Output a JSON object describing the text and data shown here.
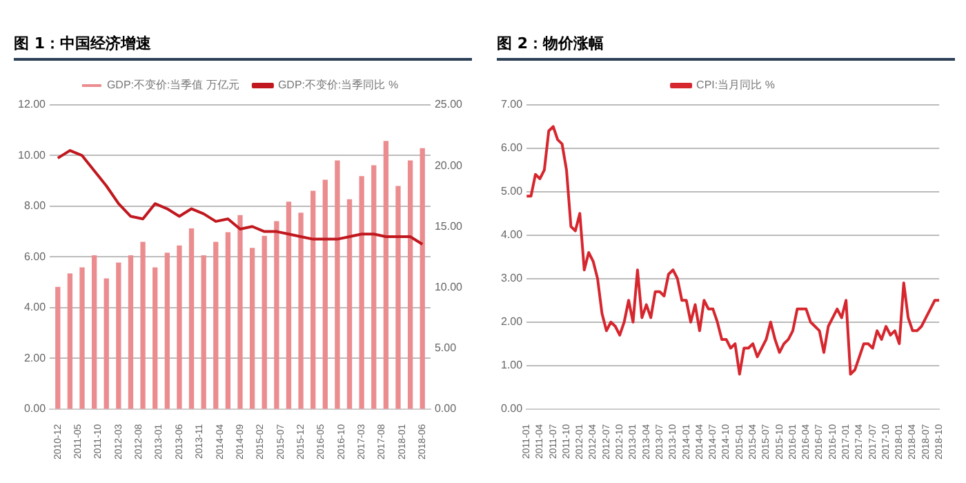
{
  "chart_data": [
    {
      "type": "bar",
      "title": "图 1：中国经济增速",
      "legend": "top",
      "grid": "y",
      "xlim": [
        "2010-10",
        "2018-08"
      ],
      "xticks": [
        "2010-12",
        "2011-05",
        "2011-10",
        "2012-03",
        "2012-08",
        "2013-01",
        "2013-06",
        "2013-11",
        "2014-04",
        "2014-09",
        "2015-02",
        "2015-07",
        "2015-12",
        "2016-05",
        "2016-10",
        "2017-03",
        "2017-08",
        "2018-01",
        "2018-06"
      ],
      "ylim": [
        0,
        12
      ],
      "yticks": [
        {
          "value": 0,
          "label": "0.00"
        },
        {
          "value": 2,
          "label": "2.00"
        },
        {
          "value": 4,
          "label": "4.00"
        },
        {
          "value": 6,
          "label": "6.00"
        },
        {
          "value": 8,
          "label": "8.00"
        },
        {
          "value": 10,
          "label": "10.00"
        },
        {
          "value": 12,
          "label": "12.00"
        }
      ],
      "y2lim": [
        0,
        25
      ],
      "y2ticks": [
        {
          "value": 0,
          "label": "0.00"
        },
        {
          "value": 5,
          "label": "5.00"
        },
        {
          "value": 10,
          "label": "10.00"
        },
        {
          "value": 15,
          "label": "15.00"
        },
        {
          "value": 20,
          "label": "20.00"
        },
        {
          "value": 25,
          "label": "25.00"
        }
      ],
      "x": [
        "2010-12",
        "2011-03",
        "2011-06",
        "2011-09",
        "2011-12",
        "2012-03",
        "2012-06",
        "2012-09",
        "2012-12",
        "2013-03",
        "2013-06",
        "2013-09",
        "2013-12",
        "2014-03",
        "2014-06",
        "2014-09",
        "2014-12",
        "2015-03",
        "2015-06",
        "2015-09",
        "2015-12",
        "2016-03",
        "2016-06",
        "2016-09",
        "2016-12",
        "2017-03",
        "2017-06",
        "2017-09",
        "2017-12",
        "2018-03",
        "2018-06"
      ],
      "series": [
        {
          "name": "GDP:不变价:当季值 万亿元",
          "axis": "y2",
          "color": "#eb8c8f",
          "values": [
            10,
            11.1,
            11.6,
            12.6,
            10.7,
            12,
            12.6,
            13.7,
            11.6,
            12.8,
            13.4,
            14.8,
            12.6,
            13.7,
            14.5,
            15.9,
            13.2,
            14.2,
            15.4,
            17,
            16.1,
            17.9,
            18.8,
            20.4,
            17.2,
            19.1,
            20,
            22,
            18.3,
            20.4,
            21.4
          ]
        },
        {
          "name": "GDP:不变价:当季同比 %",
          "type": "line",
          "axis": "y",
          "color": "#c0181e",
          "values": [
            9.9,
            10.2,
            10,
            9.4,
            8.8,
            8.1,
            7.6,
            7.5,
            8.1,
            7.9,
            7.6,
            7.9,
            7.7,
            7.4,
            7.5,
            7.1,
            7.2,
            7,
            7,
            6.9,
            6.8,
            6.7,
            6.7,
            6.7,
            6.8,
            6.9,
            6.9,
            6.8,
            6.8,
            6.8,
            6.5
          ]
        }
      ]
    },
    {
      "type": "line",
      "title": "图 2：物价涨幅",
      "legend": "top",
      "grid": "y",
      "xlim": [
        "2011-01",
        "2018-10"
      ],
      "xticks": [
        "2011-01",
        "2011-04",
        "2011-07",
        "2011-10",
        "2012-01",
        "2012-04",
        "2012-07",
        "2012-10",
        "2013-01",
        "2013-04",
        "2013-07",
        "2013-10",
        "2014-01",
        "2014-04",
        "2014-07",
        "2014-10",
        "2015-01",
        "2015-04",
        "2015-07",
        "2015-10",
        "2016-01",
        "2016-04",
        "2016-07",
        "2016-10",
        "2017-01",
        "2017-04",
        "2017-07",
        "2017-10",
        "2018-01",
        "2018-04",
        "2018-07",
        "2018-10"
      ],
      "ylim": [
        0,
        7
      ],
      "yticks": [
        {
          "value": 0,
          "label": "0.00"
        },
        {
          "value": 1,
          "label": "1.00"
        },
        {
          "value": 2,
          "label": "2.00"
        },
        {
          "value": 3,
          "label": "3.00"
        },
        {
          "value": 4,
          "label": "4.00"
        },
        {
          "value": 5,
          "label": "5.00"
        },
        {
          "value": 6,
          "label": "6.00"
        },
        {
          "value": 7,
          "label": "7.00"
        }
      ],
      "x": [
        "2011-01",
        "2011-02",
        "2011-03",
        "2011-04",
        "2011-05",
        "2011-06",
        "2011-07",
        "2011-08",
        "2011-09",
        "2011-10",
        "2011-11",
        "2011-12",
        "2012-01",
        "2012-02",
        "2012-03",
        "2012-04",
        "2012-05",
        "2012-06",
        "2012-07",
        "2012-08",
        "2012-09",
        "2012-10",
        "2012-11",
        "2012-12",
        "2013-01",
        "2013-02",
        "2013-03",
        "2013-04",
        "2013-05",
        "2013-06",
        "2013-07",
        "2013-08",
        "2013-09",
        "2013-10",
        "2013-11",
        "2013-12",
        "2014-01",
        "2014-02",
        "2014-03",
        "2014-04",
        "2014-05",
        "2014-06",
        "2014-07",
        "2014-08",
        "2014-09",
        "2014-10",
        "2014-11",
        "2014-12",
        "2015-01",
        "2015-02",
        "2015-03",
        "2015-04",
        "2015-05",
        "2015-06",
        "2015-07",
        "2015-08",
        "2015-09",
        "2015-10",
        "2015-11",
        "2015-12",
        "2016-01",
        "2016-02",
        "2016-03",
        "2016-04",
        "2016-05",
        "2016-06",
        "2016-07",
        "2016-08",
        "2016-09",
        "2016-10",
        "2016-11",
        "2016-12",
        "2017-01",
        "2017-02",
        "2017-03",
        "2017-04",
        "2017-05",
        "2017-06",
        "2017-07",
        "2017-08",
        "2017-09",
        "2017-10",
        "2017-11",
        "2017-12",
        "2018-01",
        "2018-02",
        "2018-03",
        "2018-04",
        "2018-05",
        "2018-06",
        "2018-07",
        "2018-08",
        "2018-09",
        "2018-10"
      ],
      "series": [
        {
          "name": "CPI:当月同比 %",
          "color": "#d6262e",
          "values": [
            4.9,
            4.9,
            5.4,
            5.3,
            5.5,
            6.4,
            6.5,
            6.2,
            6.1,
            5.5,
            4.2,
            4.1,
            4.5,
            3.2,
            3.6,
            3.4,
            3,
            2.2,
            1.8,
            2,
            1.9,
            1.7,
            2,
            2.5,
            2,
            3.2,
            2.1,
            2.4,
            2.1,
            2.7,
            2.7,
            2.6,
            3.1,
            3.2,
            3,
            2.5,
            2.5,
            2,
            2.4,
            1.8,
            2.5,
            2.3,
            2.3,
            2,
            1.6,
            1.6,
            1.4,
            1.5,
            0.8,
            1.4,
            1.4,
            1.5,
            1.2,
            1.4,
            1.6,
            2,
            1.6,
            1.3,
            1.5,
            1.6,
            1.8,
            2.3,
            2.3,
            2.3,
            2,
            1.9,
            1.8,
            1.3,
            1.9,
            2.1,
            2.3,
            2.1,
            2.5,
            0.8,
            0.9,
            1.2,
            1.5,
            1.5,
            1.4,
            1.8,
            1.6,
            1.9,
            1.7,
            1.8,
            1.5,
            2.9,
            2.1,
            1.8,
            1.8,
            1.9,
            2.1,
            2.3,
            2.5,
            2.5
          ]
        }
      ]
    }
  ]
}
